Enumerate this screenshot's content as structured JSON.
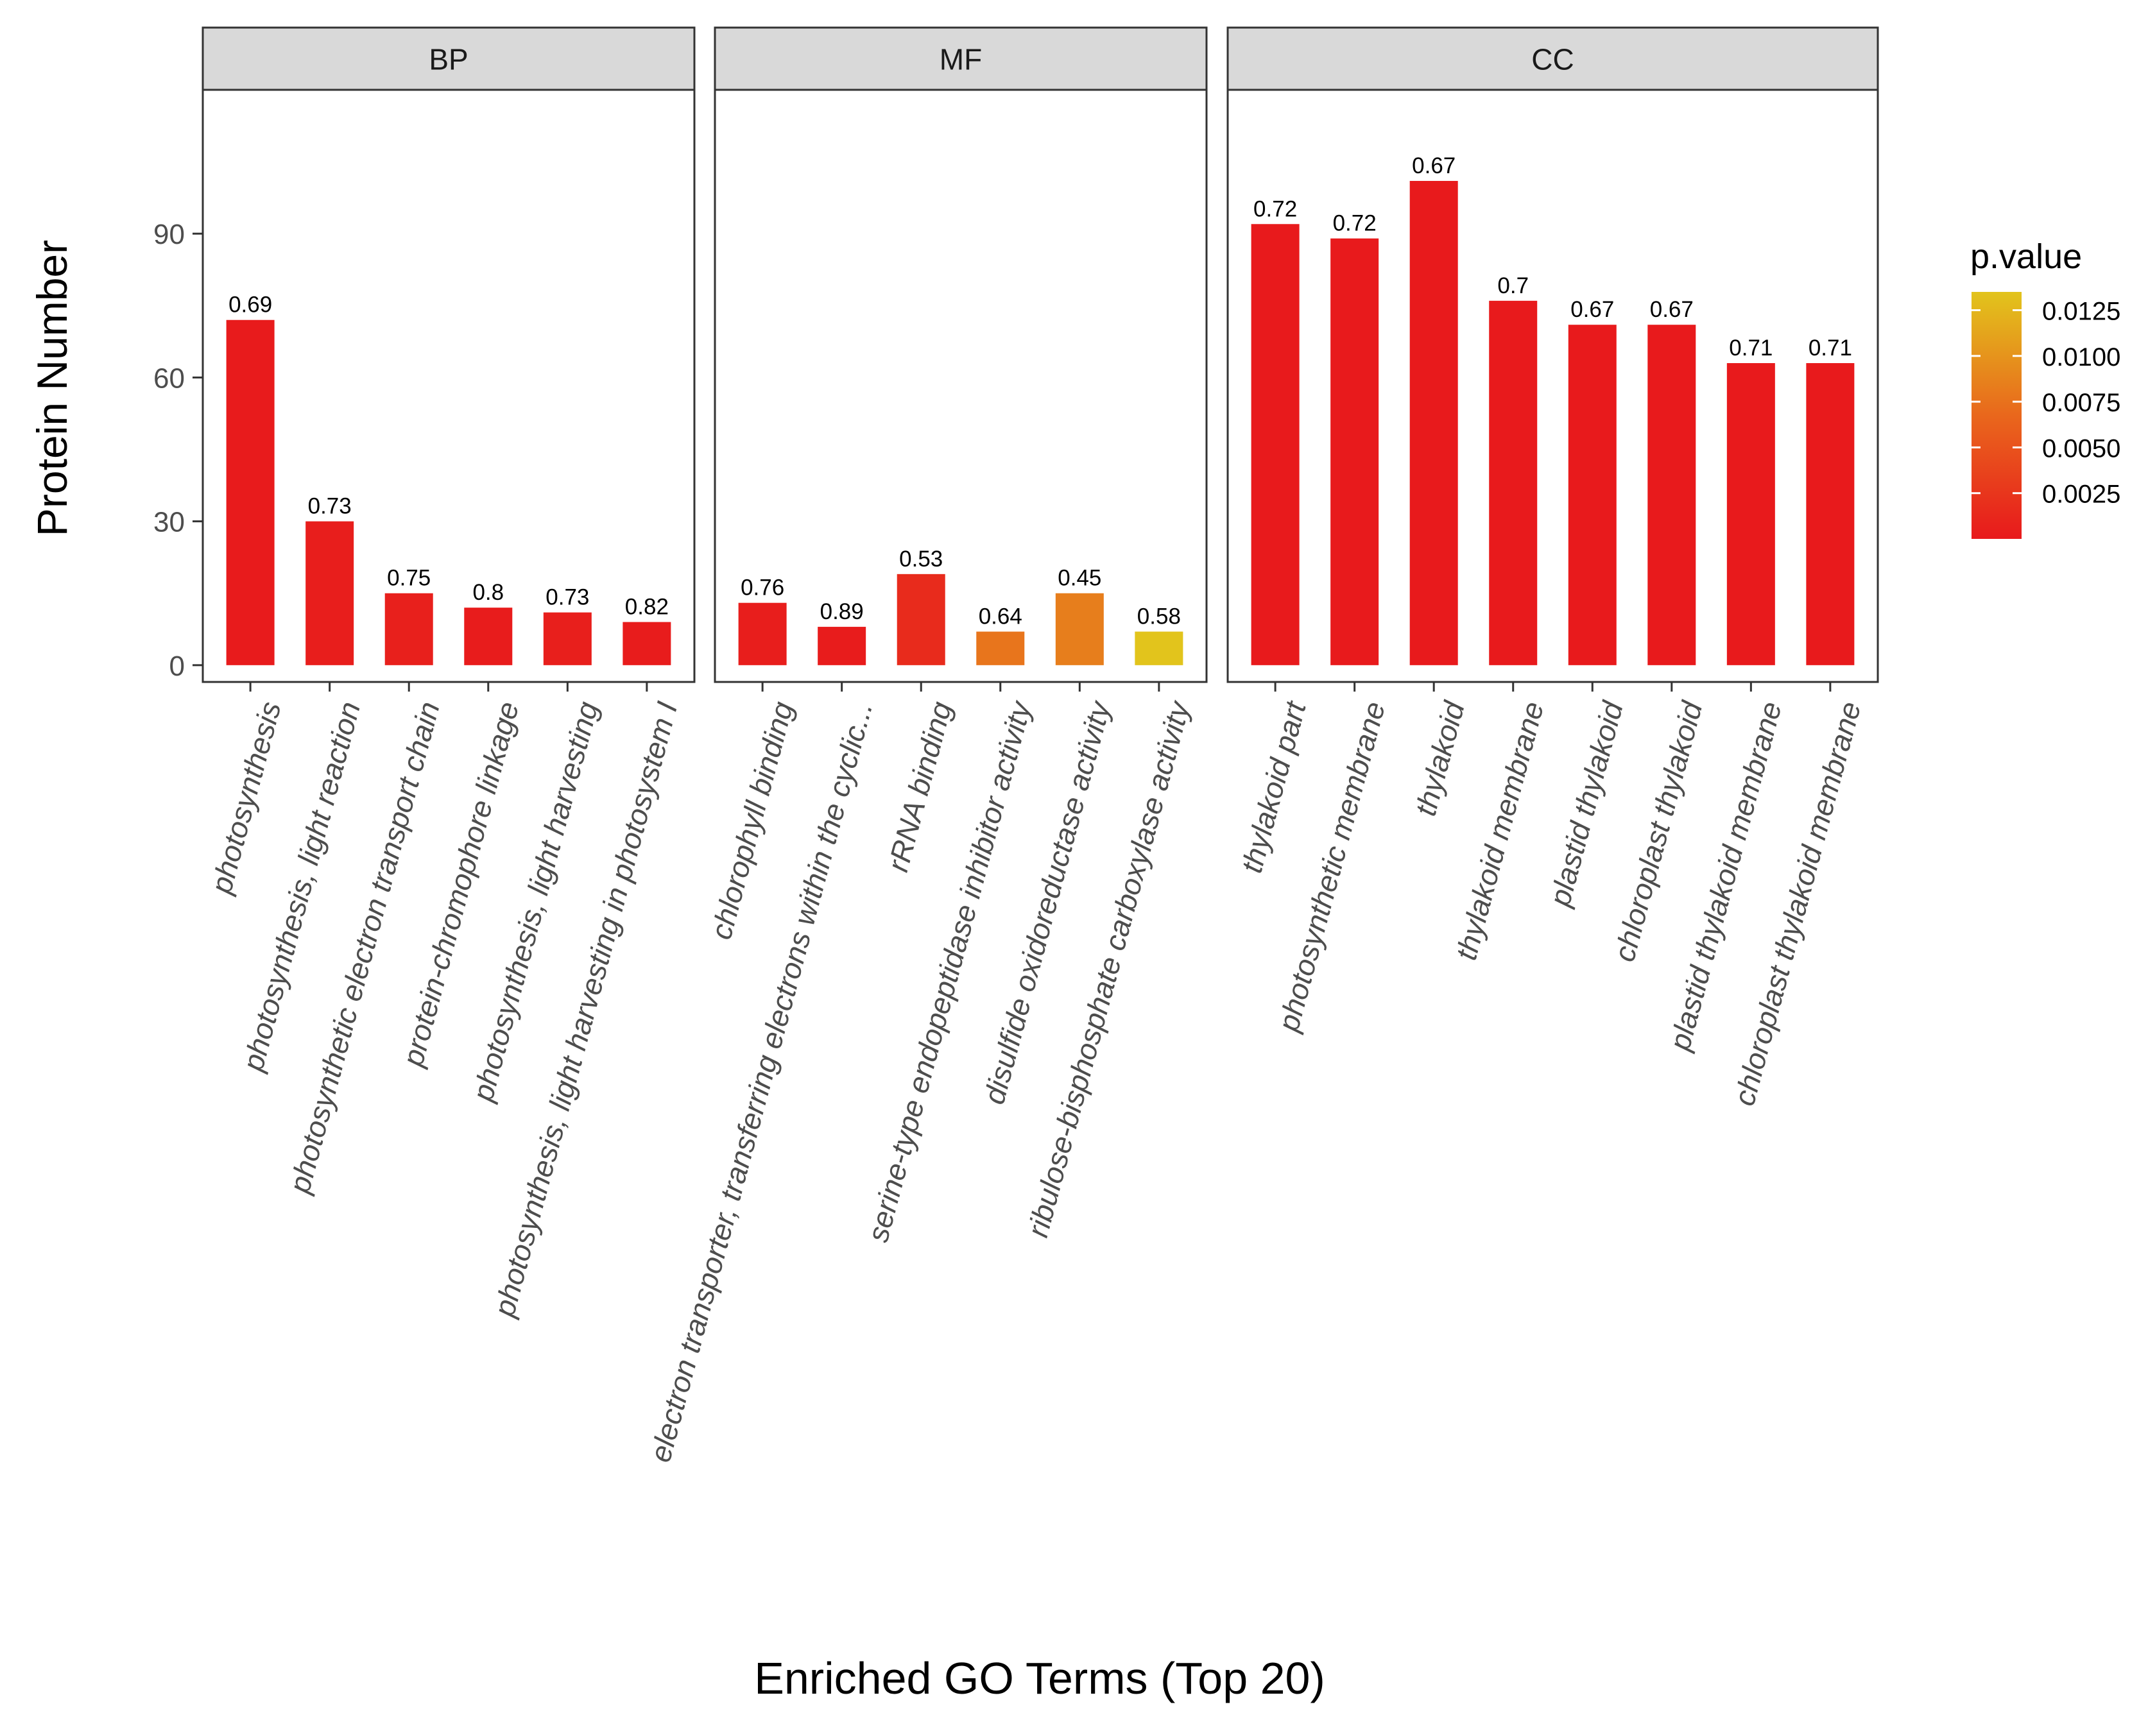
{
  "chart_data": {
    "type": "bar",
    "title": "",
    "xlabel": "Enriched GO Terms (Top 20)",
    "ylabel": "Protein Number",
    "ylim": [
      -3.5,
      120
    ],
    "yticks": [
      0,
      30,
      60,
      90
    ],
    "grid": false,
    "legend": {
      "title": "p.value",
      "position": "right",
      "ticks": [
        0.0125,
        0.01,
        0.0075,
        0.005,
        0.0025
      ],
      "tick_labels": [
        "0.0125",
        "0.0100",
        "0.0075",
        "0.0050",
        "0.0025"
      ],
      "range": [
        0.0,
        0.0135
      ],
      "low_color": "#e8191c",
      "mid_color": "#e9671c",
      "high_color": "#e2c41c"
    },
    "panels": [
      {
        "name": "BP",
        "categories": [
          "photosynthesis",
          "photosynthesis, light reaction",
          "photosynthetic electron transport chain",
          "protein-chromophore linkage",
          "photosynthesis, light harvesting",
          "photosynthesis, light harvesting in photosystem I"
        ],
        "values": [
          72,
          30,
          15,
          12,
          11,
          9
        ],
        "labels": [
          "0.69",
          "0.73",
          "0.75",
          "0.8",
          "0.73",
          "0.82"
        ],
        "pvalues": [
          0.0002,
          0.0004,
          0.0006,
          0.0003,
          0.0005,
          0.0003
        ]
      },
      {
        "name": "MF",
        "categories": [
          "chlorophyll binding",
          "electron transporter, transferring electrons within the cyclic...",
          "rRNA binding",
          "serine-type endopeptidase inhibitor activity",
          "disulfide oxidoreductase activity",
          "ribulose-bisphosphate carboxylase activity"
        ],
        "values": [
          13,
          8,
          19,
          7,
          15,
          7
        ],
        "labels": [
          "0.76",
          "0.89",
          "0.53",
          "0.64",
          "0.45",
          "0.58"
        ],
        "pvalues": [
          0.0004,
          0.0003,
          0.0016,
          0.0078,
          0.0084,
          0.0135
        ]
      },
      {
        "name": "CC",
        "categories": [
          "thylakoid part",
          "photosynthetic membrane",
          "thylakoid",
          "thylakoid membrane",
          "plastid thylakoid",
          "chloroplast thylakoid",
          "plastid thylakoid membrane",
          "chloroplast thylakoid membrane"
        ],
        "values": [
          92,
          89,
          101,
          76,
          71,
          71,
          63,
          63
        ],
        "labels": [
          "0.72",
          "0.72",
          "0.67",
          "0.7",
          "0.67",
          "0.67",
          "0.71",
          "0.71"
        ],
        "pvalues": [
          0.0001,
          0.0001,
          0.0001,
          0.0001,
          0.0001,
          0.0001,
          0.0001,
          0.0001
        ]
      }
    ]
  }
}
